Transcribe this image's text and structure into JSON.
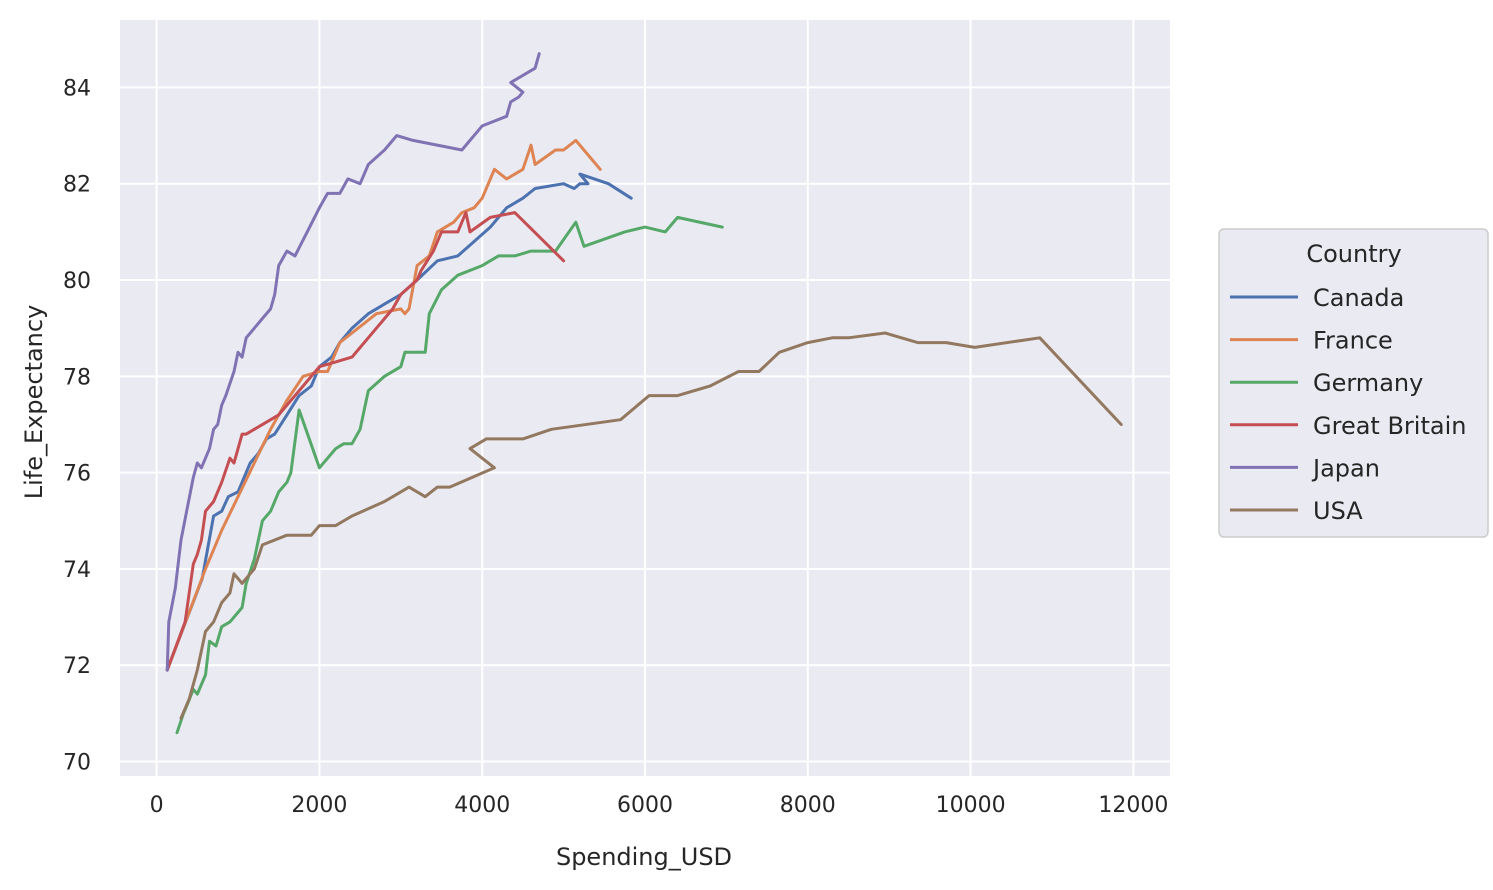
{
  "chart_data": {
    "type": "line",
    "xlabel": "Spending_USD",
    "ylabel": "Life_Expectancy",
    "xlim": [
      -450,
      12450
    ],
    "ylim": [
      69.7,
      85.4
    ],
    "xticks": [
      0,
      2000,
      4000,
      6000,
      8000,
      10000,
      12000
    ],
    "yticks": [
      70,
      72,
      74,
      76,
      78,
      80,
      82,
      84
    ],
    "grid": true,
    "background": "#eaeaf2",
    "legend": {
      "title": "Country",
      "placement": "right"
    },
    "series": [
      {
        "name": "Canada",
        "color": "#4c72b0",
        "points": [
          [
            130,
            71.9
          ],
          [
            560,
            73.8
          ],
          [
            700,
            75.1
          ],
          [
            800,
            75.2
          ],
          [
            880,
            75.5
          ],
          [
            1000,
            75.6
          ],
          [
            1150,
            76.2
          ],
          [
            1250,
            76.4
          ],
          [
            1350,
            76.7
          ],
          [
            1450,
            76.8
          ],
          [
            1600,
            77.2
          ],
          [
            1750,
            77.6
          ],
          [
            1900,
            77.8
          ],
          [
            2000,
            78.2
          ],
          [
            2150,
            78.4
          ],
          [
            2250,
            78.7
          ],
          [
            2400,
            79.0
          ],
          [
            2600,
            79.3
          ],
          [
            2800,
            79.5
          ],
          [
            3000,
            79.7
          ],
          [
            3200,
            80.0
          ],
          [
            3450,
            80.4
          ],
          [
            3700,
            80.5
          ],
          [
            3900,
            80.8
          ],
          [
            4100,
            81.1
          ],
          [
            4300,
            81.5
          ],
          [
            4500,
            81.7
          ],
          [
            4650,
            81.9
          ],
          [
            5000,
            82.0
          ],
          [
            5130,
            81.9
          ],
          [
            5200,
            82.0
          ],
          [
            5300,
            82.0
          ],
          [
            5200,
            82.2
          ],
          [
            5550,
            82.0
          ],
          [
            5830,
            81.7
          ]
        ]
      },
      {
        "name": "France",
        "color": "#dd8452",
        "points": [
          [
            130,
            71.9
          ],
          [
            400,
            73.1
          ],
          [
            600,
            74.0
          ],
          [
            800,
            74.8
          ],
          [
            1000,
            75.5
          ],
          [
            1200,
            76.2
          ],
          [
            1400,
            76.9
          ],
          [
            1600,
            77.5
          ],
          [
            1800,
            78.0
          ],
          [
            2000,
            78.1
          ],
          [
            2100,
            78.1
          ],
          [
            2250,
            78.7
          ],
          [
            2400,
            78.9
          ],
          [
            2700,
            79.3
          ],
          [
            3000,
            79.4
          ],
          [
            3050,
            79.3
          ],
          [
            3100,
            79.4
          ],
          [
            3200,
            80.3
          ],
          [
            3350,
            80.5
          ],
          [
            3450,
            81.0
          ],
          [
            3650,
            81.2
          ],
          [
            3750,
            81.4
          ],
          [
            3900,
            81.5
          ],
          [
            4000,
            81.7
          ],
          [
            4150,
            82.3
          ],
          [
            4300,
            82.1
          ],
          [
            4500,
            82.3
          ],
          [
            4600,
            82.8
          ],
          [
            4650,
            82.4
          ],
          [
            4900,
            82.7
          ],
          [
            5000,
            82.7
          ],
          [
            5150,
            82.9
          ],
          [
            5450,
            82.3
          ]
        ]
      },
      {
        "name": "Germany",
        "color": "#55a868",
        "points": [
          [
            250,
            70.6
          ],
          [
            330,
            71.0
          ],
          [
            380,
            71.2
          ],
          [
            450,
            71.5
          ],
          [
            500,
            71.4
          ],
          [
            600,
            71.8
          ],
          [
            650,
            72.5
          ],
          [
            730,
            72.4
          ],
          [
            800,
            72.8
          ],
          [
            900,
            72.9
          ],
          [
            950,
            73.0
          ],
          [
            1050,
            73.2
          ],
          [
            1100,
            73.7
          ],
          [
            1200,
            74.2
          ],
          [
            1300,
            75.0
          ],
          [
            1400,
            75.2
          ],
          [
            1500,
            75.6
          ],
          [
            1600,
            75.8
          ],
          [
            1650,
            76.0
          ],
          [
            1750,
            77.3
          ],
          [
            2000,
            76.1
          ],
          [
            2200,
            76.5
          ],
          [
            2300,
            76.6
          ],
          [
            2400,
            76.6
          ],
          [
            2500,
            76.9
          ],
          [
            2600,
            77.7
          ],
          [
            2800,
            78.0
          ],
          [
            3000,
            78.2
          ],
          [
            3050,
            78.5
          ],
          [
            3200,
            78.5
          ],
          [
            3300,
            78.5
          ],
          [
            3350,
            79.3
          ],
          [
            3500,
            79.8
          ],
          [
            3700,
            80.1
          ],
          [
            4000,
            80.3
          ],
          [
            4200,
            80.5
          ],
          [
            4400,
            80.5
          ],
          [
            4600,
            80.6
          ],
          [
            4900,
            80.6
          ],
          [
            5150,
            81.2
          ],
          [
            5250,
            80.7
          ],
          [
            5750,
            81.0
          ],
          [
            6000,
            81.1
          ],
          [
            6250,
            81.0
          ],
          [
            6400,
            81.3
          ],
          [
            6950,
            81.1
          ]
        ]
      },
      {
        "name": "Great Britain",
        "color": "#c44e52",
        "points": [
          [
            130,
            71.9
          ],
          [
            350,
            72.9
          ],
          [
            450,
            74.1
          ],
          [
            500,
            74.3
          ],
          [
            550,
            74.6
          ],
          [
            600,
            75.2
          ],
          [
            700,
            75.4
          ],
          [
            800,
            75.8
          ],
          [
            900,
            76.3
          ],
          [
            950,
            76.2
          ],
          [
            1050,
            76.8
          ],
          [
            1100,
            76.8
          ],
          [
            1200,
            76.9
          ],
          [
            1400,
            77.1
          ],
          [
            1500,
            77.2
          ],
          [
            1600,
            77.4
          ],
          [
            1800,
            77.8
          ],
          [
            2000,
            78.2
          ],
          [
            2200,
            78.3
          ],
          [
            2400,
            78.4
          ],
          [
            2700,
            79.0
          ],
          [
            2900,
            79.4
          ],
          [
            3000,
            79.7
          ],
          [
            3200,
            80.0
          ],
          [
            3250,
            80.2
          ],
          [
            3400,
            80.6
          ],
          [
            3500,
            81.0
          ],
          [
            3700,
            81.0
          ],
          [
            3800,
            81.4
          ],
          [
            3850,
            81.0
          ],
          [
            4100,
            81.3
          ],
          [
            4400,
            81.4
          ],
          [
            5000,
            80.4
          ]
        ]
      },
      {
        "name": "Japan",
        "color": "#8172b3",
        "points": [
          [
            130,
            71.9
          ],
          [
            150,
            72.9
          ],
          [
            230,
            73.6
          ],
          [
            300,
            74.6
          ],
          [
            380,
            75.3
          ],
          [
            450,
            75.9
          ],
          [
            500,
            76.2
          ],
          [
            550,
            76.1
          ],
          [
            650,
            76.5
          ],
          [
            700,
            76.9
          ],
          [
            750,
            77.0
          ],
          [
            800,
            77.4
          ],
          [
            850,
            77.6
          ],
          [
            950,
            78.1
          ],
          [
            1000,
            78.5
          ],
          [
            1050,
            78.4
          ],
          [
            1100,
            78.8
          ],
          [
            1200,
            79.0
          ],
          [
            1300,
            79.2
          ],
          [
            1400,
            79.4
          ],
          [
            1450,
            79.7
          ],
          [
            1500,
            80.3
          ],
          [
            1600,
            80.6
          ],
          [
            1700,
            80.5
          ],
          [
            1850,
            81.0
          ],
          [
            2000,
            81.5
          ],
          [
            2100,
            81.8
          ],
          [
            2250,
            81.8
          ],
          [
            2350,
            82.1
          ],
          [
            2500,
            82.0
          ],
          [
            2600,
            82.4
          ],
          [
            2800,
            82.7
          ],
          [
            2950,
            83.0
          ],
          [
            3150,
            82.9
          ],
          [
            3750,
            82.7
          ],
          [
            4000,
            83.2
          ],
          [
            4300,
            83.4
          ],
          [
            4350,
            83.7
          ],
          [
            4450,
            83.8
          ],
          [
            4500,
            83.9
          ],
          [
            4350,
            84.1
          ],
          [
            4650,
            84.4
          ],
          [
            4700,
            84.7
          ]
        ]
      },
      {
        "name": "USA",
        "color": "#937860",
        "points": [
          [
            300,
            70.9
          ],
          [
            400,
            71.3
          ],
          [
            500,
            71.9
          ],
          [
            600,
            72.7
          ],
          [
            700,
            72.9
          ],
          [
            800,
            73.3
          ],
          [
            900,
            73.5
          ],
          [
            950,
            73.9
          ],
          [
            1050,
            73.7
          ],
          [
            1200,
            74.0
          ],
          [
            1300,
            74.5
          ],
          [
            1600,
            74.7
          ],
          [
            1900,
            74.7
          ],
          [
            2000,
            74.9
          ],
          [
            2200,
            74.9
          ],
          [
            2400,
            75.1
          ],
          [
            2800,
            75.4
          ],
          [
            3000,
            75.6
          ],
          [
            3100,
            75.7
          ],
          [
            3300,
            75.5
          ],
          [
            3450,
            75.7
          ],
          [
            3600,
            75.7
          ],
          [
            4150,
            76.1
          ],
          [
            3850,
            76.5
          ],
          [
            4050,
            76.7
          ],
          [
            4500,
            76.7
          ],
          [
            4850,
            76.9
          ],
          [
            5700,
            77.1
          ],
          [
            6050,
            77.6
          ],
          [
            6400,
            77.6
          ],
          [
            6800,
            77.8
          ],
          [
            7150,
            78.1
          ],
          [
            7400,
            78.1
          ],
          [
            7650,
            78.5
          ],
          [
            8000,
            78.7
          ],
          [
            8300,
            78.8
          ],
          [
            8500,
            78.8
          ],
          [
            8950,
            78.9
          ],
          [
            9350,
            78.7
          ],
          [
            9700,
            78.7
          ],
          [
            10050,
            78.6
          ],
          [
            10850,
            78.8
          ],
          [
            11850,
            77.0
          ]
        ]
      }
    ]
  }
}
